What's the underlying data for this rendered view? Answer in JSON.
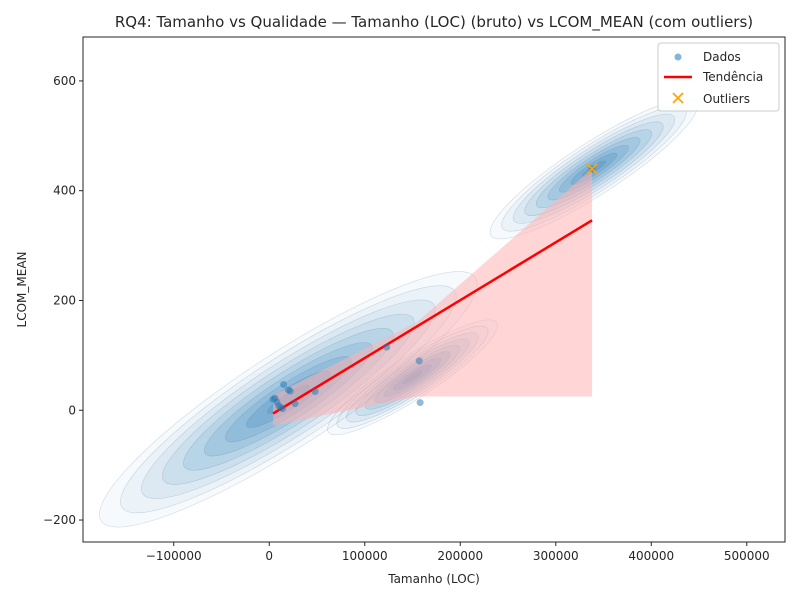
{
  "chart_data": {
    "type": "scatter",
    "title": "RQ4: Tamanho vs Qualidade — Tamanho (LOC) (bruto) vs LCOM_MEAN (com outliers)",
    "xlabel": "Tamanho (LOC)",
    "ylabel": "LCOM_MEAN",
    "xlim": [
      -195000,
      540000
    ],
    "ylim": [
      -240,
      680
    ],
    "x_ticks": [
      -100000,
      0,
      100000,
      200000,
      300000,
      400000,
      500000
    ],
    "y_ticks": [
      -200,
      0,
      200,
      400,
      600
    ],
    "grid": false,
    "legend_position": "top-right",
    "series": [
      {
        "name": "Dados",
        "kind": "scatter",
        "color": "#1f77b4",
        "points": [
          {
            "x": 4000,
            "y": 20
          },
          {
            "x": 6000,
            "y": 22
          },
          {
            "x": 8000,
            "y": 15
          },
          {
            "x": 10000,
            "y": 8
          },
          {
            "x": 12000,
            "y": 5
          },
          {
            "x": 14000,
            "y": 3
          },
          {
            "x": 15000,
            "y": 47
          },
          {
            "x": 20000,
            "y": 37
          },
          {
            "x": 22000,
            "y": 35
          },
          {
            "x": 27000,
            "y": 12
          },
          {
            "x": 48000,
            "y": 34
          },
          {
            "x": 123000,
            "y": 115
          },
          {
            "x": 157000,
            "y": 90
          },
          {
            "x": 158000,
            "y": 14
          },
          {
            "x": 338000,
            "y": 440
          }
        ]
      },
      {
        "name": "Tendência",
        "kind": "line",
        "color": "#ff0000",
        "points": [
          {
            "x": 4000,
            "y": -6
          },
          {
            "x": 338000,
            "y": 346
          }
        ]
      },
      {
        "name": "Outliers",
        "kind": "marker-x",
        "color": "#ffa500",
        "points": [
          {
            "x": 338000,
            "y": 440
          }
        ]
      }
    ],
    "density_color": "#1f77b4",
    "confidence_band_color": "#ffb3b3"
  }
}
